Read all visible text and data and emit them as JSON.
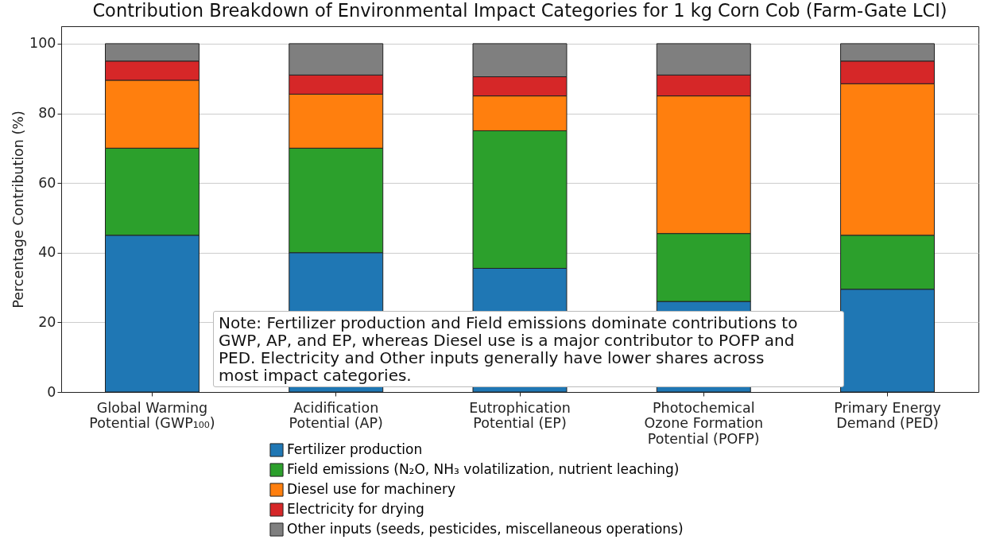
{
  "chart_data": {
    "type": "bar",
    "stacked": true,
    "title": "Contribution Breakdown of Environmental Impact Categories for 1 kg Corn Cob (Farm-Gate LCI)",
    "ylabel": "Percentage Contribution (%)",
    "categories": [
      "Global Warming\nPotential (GWP₁₀₀)",
      "Acidification\nPotential (AP)",
      "Eutrophication\nPotential (EP)",
      "Photochemical\nOzone Formation\nPotential (POFP)",
      "Primary Energy\nDemand (PED)"
    ],
    "series": [
      {
        "name": "Fertilizer production",
        "color": "#1f77b4",
        "values": [
          45,
          40,
          35.5,
          26,
          29.5
        ]
      },
      {
        "name": "Field emissions (N₂O, NH₃ volatilization, nutrient leaching)",
        "color": "#2ca02c",
        "values": [
          25,
          30,
          39.5,
          19.5,
          15.5
        ]
      },
      {
        "name": "Diesel use for machinery",
        "color": "#ff7f0e",
        "values": [
          19.5,
          15.5,
          10,
          39.5,
          43.5
        ]
      },
      {
        "name": "Electricity for drying",
        "color": "#d62728",
        "values": [
          5.5,
          5.5,
          5.5,
          6,
          6.5
        ]
      },
      {
        "name": "Other inputs (seeds, pesticides, miscellaneous operations)",
        "color": "#7f7f7f",
        "values": [
          5,
          9,
          9.5,
          9,
          5
        ]
      }
    ],
    "ylim": [
      0,
      105
    ],
    "yticks": [
      0,
      20,
      40,
      60,
      80,
      100
    ],
    "grid": "y",
    "legend": "bottom",
    "annotations": [
      "Note: Fertilizer production and Field emissions dominate contributions to\nGWP, AP, and EP, whereas Diesel use is a major contributor to POFP and\nPED. Electricity and Other inputs generally have lower shares across\nmost impact categories."
    ]
  }
}
